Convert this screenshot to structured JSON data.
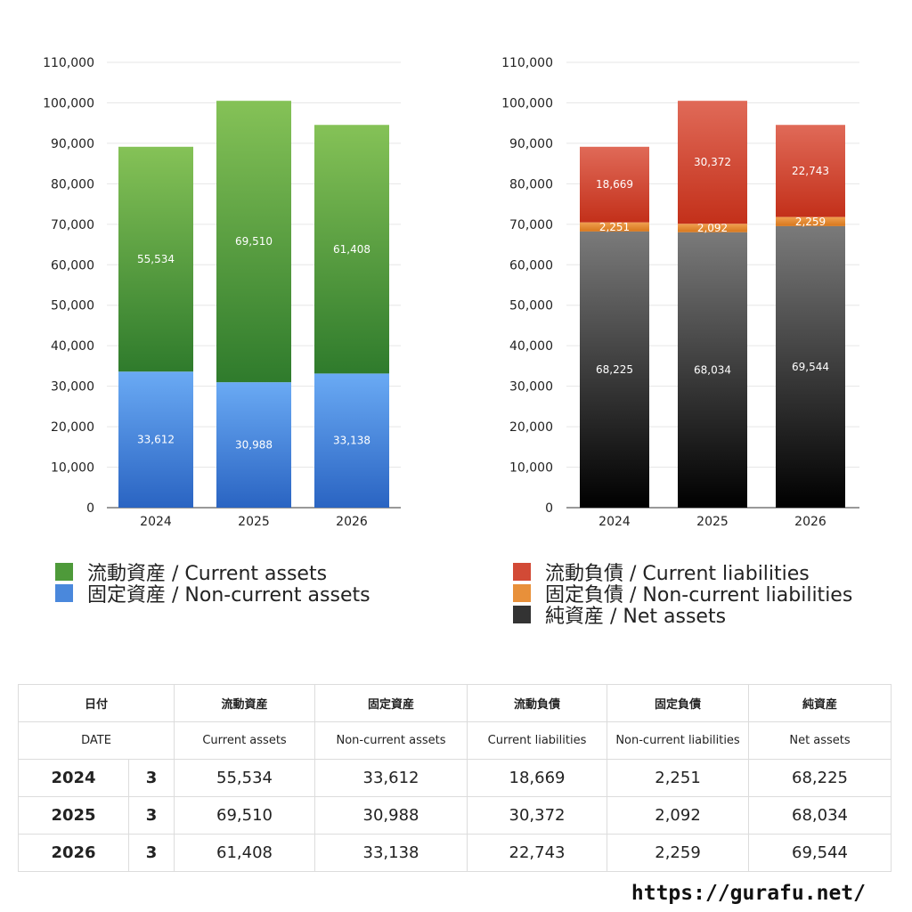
{
  "chart_data": [
    {
      "type": "bar",
      "stacked": true,
      "categories": [
        "2024",
        "2025",
        "2026"
      ],
      "series": [
        {
          "name": "固定資産 / Non-current assets",
          "values": [
            33612,
            30988,
            33138
          ],
          "colors": [
            "#2a64c2",
            "#6aaaf4"
          ]
        },
        {
          "name": "流動資産 / Current assets",
          "values": [
            55534,
            69510,
            61408
          ],
          "colors": [
            "#2f7b2c",
            "#85c257"
          ]
        }
      ],
      "ylim": [
        0,
        110000
      ],
      "yticks": [
        0,
        10000,
        20000,
        30000,
        40000,
        50000,
        60000,
        70000,
        80000,
        90000,
        100000,
        110000
      ],
      "ytick_labels": [
        "0",
        "10,000",
        "20,000",
        "30,000",
        "40,000",
        "50,000",
        "60,000",
        "70,000",
        "80,000",
        "90,000",
        "100,000",
        "110,000"
      ],
      "grid": true,
      "legend": "bottom"
    },
    {
      "type": "bar",
      "stacked": true,
      "categories": [
        "2024",
        "2025",
        "2026"
      ],
      "series": [
        {
          "name": "純資産 / Net assets",
          "values": [
            68225,
            68034,
            69544
          ],
          "colors": [
            "#000000",
            "#7a7a7a"
          ]
        },
        {
          "name": "固定負債 / Non-current liabilities",
          "values": [
            2251,
            2092,
            2259
          ],
          "colors": [
            "#d6761c",
            "#f0a050"
          ]
        },
        {
          "name": "流動負債 / Current liabilities",
          "values": [
            18669,
            30372,
            22743
          ],
          "colors": [
            "#c3301a",
            "#e06a58"
          ]
        }
      ],
      "ylim": [
        0,
        110000
      ],
      "yticks": [
        0,
        10000,
        20000,
        30000,
        40000,
        50000,
        60000,
        70000,
        80000,
        90000,
        100000,
        110000
      ],
      "ytick_labels": [
        "0",
        "10,000",
        "20,000",
        "30,000",
        "40,000",
        "50,000",
        "60,000",
        "70,000",
        "80,000",
        "90,000",
        "100,000",
        "110,000"
      ],
      "grid": true,
      "legend": "bottom"
    }
  ],
  "legend_left": [
    {
      "label": "流動資産 / Current assets",
      "color": "#4e9a3a"
    },
    {
      "label": "固定資産 / Non-current assets",
      "color": "#4a88dc"
    }
  ],
  "legend_right": [
    {
      "label": "流動負債 / Current liabilities",
      "color": "#d24a36"
    },
    {
      "label": "固定負債 / Non-current liabilities",
      "color": "#e8903a"
    },
    {
      "label": "純資産 / Net assets",
      "color": "#333333"
    }
  ],
  "table": {
    "header_jp": {
      "date": "日付",
      "ca": "流動資産",
      "nca": "固定資産",
      "cl": "流動負債",
      "ncl": "固定負債",
      "na": "純資産"
    },
    "header_en": {
      "date": "DATE",
      "ca": "Current assets",
      "nca": "Non-current assets",
      "cl": "Current liabilities",
      "ncl": "Non-current liabilities",
      "na": "Net assets"
    },
    "rows": [
      {
        "year": "2024",
        "month": "3",
        "ca": "55,534",
        "nca": "33,612",
        "cl": "18,669",
        "ncl": "2,251",
        "na": "68,225"
      },
      {
        "year": "2025",
        "month": "3",
        "ca": "69,510",
        "nca": "30,988",
        "cl": "30,372",
        "ncl": "2,092",
        "na": "68,034"
      },
      {
        "year": "2026",
        "month": "3",
        "ca": "61,408",
        "nca": "33,138",
        "cl": "22,743",
        "ncl": "2,259",
        "na": "69,544"
      }
    ]
  },
  "footer_url": "https://gurafu.net/"
}
